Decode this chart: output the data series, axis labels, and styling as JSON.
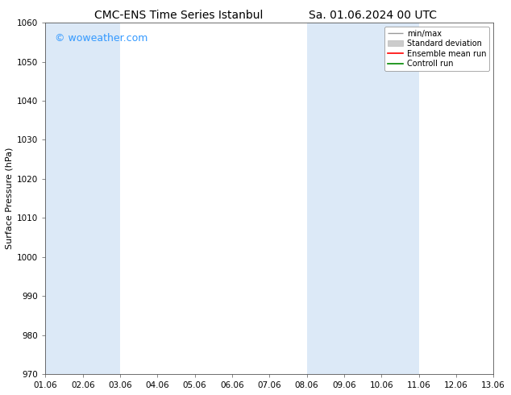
{
  "title_left": "CMC-ENS Time Series Istanbul",
  "title_right": "Sa. 01.06.2024 00 UTC",
  "ylabel": "Surface Pressure (hPa)",
  "ylim": [
    970,
    1060
  ],
  "yticks": [
    970,
    980,
    990,
    1000,
    1010,
    1020,
    1030,
    1040,
    1050,
    1060
  ],
  "xlim_start": 0,
  "xlim_end": 12,
  "xtick_labels": [
    "01.06",
    "02.06",
    "03.06",
    "04.06",
    "05.06",
    "06.06",
    "07.06",
    "08.06",
    "09.06",
    "10.06",
    "11.06",
    "12.06",
    "13.06"
  ],
  "shaded_bands": [
    {
      "x_start": 0,
      "x_end": 2,
      "color": "#dce9f7"
    },
    {
      "x_start": 7,
      "x_end": 10,
      "color": "#dce9f7"
    }
  ],
  "background_color": "#ffffff",
  "watermark_text": "© woweather.com",
  "watermark_color": "#3399ff",
  "legend_items": [
    {
      "label": "min/max",
      "color": "#999999",
      "lw": 1.0
    },
    {
      "label": "Standard deviation",
      "color": "#cccccc",
      "lw": 6
    },
    {
      "label": "Ensemble mean run",
      "color": "#ff0000",
      "lw": 1.2
    },
    {
      "label": "Controll run",
      "color": "#008800",
      "lw": 1.2
    }
  ],
  "title_fontsize": 10,
  "axis_label_fontsize": 8,
  "tick_fontsize": 7.5,
  "watermark_fontsize": 9,
  "legend_fontsize": 7
}
